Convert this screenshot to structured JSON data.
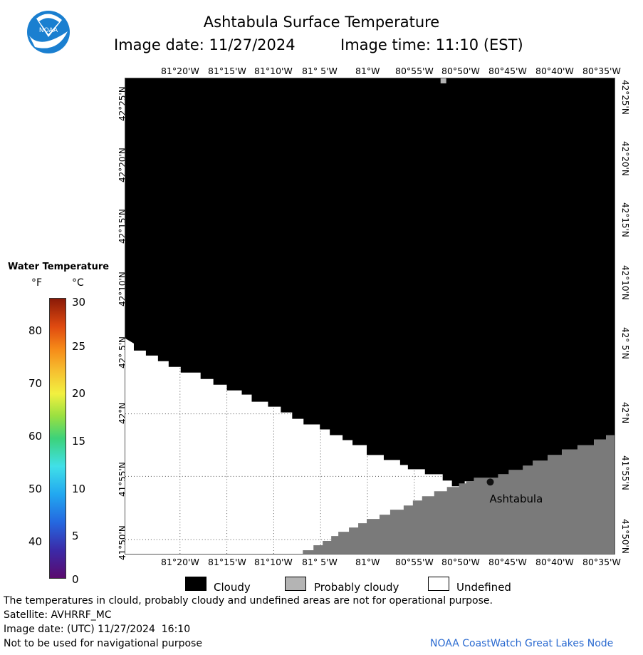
{
  "header": {
    "title": "Ashtabula Surface Temperature",
    "date_label": "Image date: 11/27/2024",
    "time_label": "Image time: 11:10 (EST)"
  },
  "logo": {
    "text": "NOAA",
    "icon": "noaa-logo-icon",
    "colors": {
      "blue": "#1a7fd0",
      "white": "#ffffff"
    }
  },
  "map": {
    "longitude_labels": [
      "81°20'W",
      "81°15'W",
      "81°10'W",
      "81° 5'W",
      "81°W",
      "80°55'W",
      "80°50'W",
      "80°45'W",
      "80°40'W",
      "80°35'W"
    ],
    "latitude_labels": [
      "42°25'N",
      "42°20'N",
      "42°15'N",
      "42°10'N",
      "42° 5'N",
      "42°N",
      "41°55'N",
      "41°50'N"
    ],
    "city": {
      "name": "Ashtabula"
    },
    "colors": {
      "cloudy": "#000000",
      "land": "#7a7a7a",
      "undefined": "#ffffff",
      "grid": "#555555"
    }
  },
  "colorbar": {
    "title": "Water Temperature",
    "unit_f": "°F",
    "unit_c": "°C",
    "f_ticks": [
      "80",
      "70",
      "60",
      "50",
      "40"
    ],
    "c_ticks": [
      "30",
      "25",
      "20",
      "15",
      "10",
      "5",
      "0"
    ]
  },
  "legend": {
    "cloudy": "Cloudy",
    "probably_cloudy": "Probably cloudy",
    "undefined": "Undefined",
    "colors": {
      "cloudy": "#000000",
      "probably_cloudy": "#b4b4b4",
      "undefined": "#ffffff"
    }
  },
  "footer": {
    "disclaimer": "The temperatures in clould, probably cloudy and undefined areas are not for operational purpose.",
    "satellite": "Satellite: AVHRRF_MC",
    "utc_date": "Image date: (UTC) 11/27/2024  16:10",
    "nav_warning": "Not to be used for navigational purpose",
    "credit": "NOAA CoastWatch Great Lakes Node",
    "credit_color": "#2a6ad0"
  }
}
